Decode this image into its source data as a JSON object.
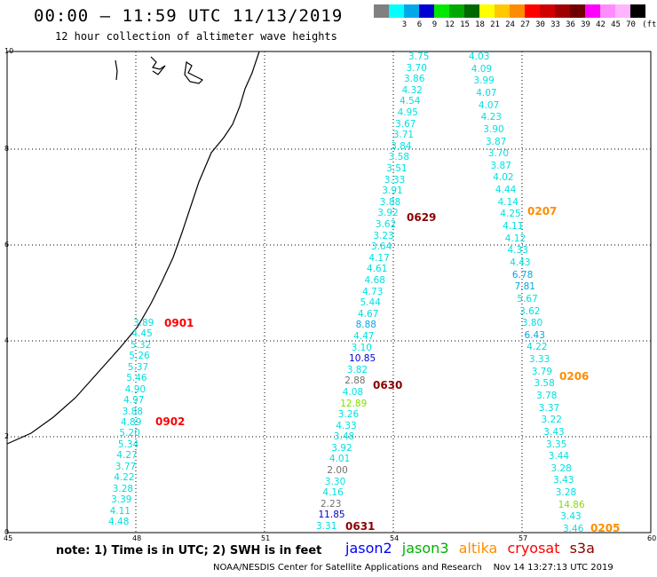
{
  "header": {
    "title": "00:00 – 11:59 UTC 11/13/2019",
    "subtitle": "12 hour collection of altimeter wave heights"
  },
  "colorbar": {
    "unit": "(ft)",
    "swatches": [
      {
        "color": "#808080",
        "label": ""
      },
      {
        "color": "#00ffff",
        "label": "3"
      },
      {
        "color": "#00a8e8",
        "label": "6"
      },
      {
        "color": "#0000d0",
        "label": "9"
      },
      {
        "color": "#00e800",
        "label": "12"
      },
      {
        "color": "#00a800",
        "label": "15"
      },
      {
        "color": "#006800",
        "label": "18"
      },
      {
        "color": "#ffff00",
        "label": "21"
      },
      {
        "color": "#ffc800",
        "label": "24"
      },
      {
        "color": "#ff8c00",
        "label": "27"
      },
      {
        "color": "#ff0000",
        "label": "30"
      },
      {
        "color": "#d00000",
        "label": "33"
      },
      {
        "color": "#a00000",
        "label": "36"
      },
      {
        "color": "#700000",
        "label": "39"
      },
      {
        "color": "#ff00ff",
        "label": "42"
      },
      {
        "color": "#ff8cff",
        "label": "45"
      },
      {
        "color": "#ffb4ff",
        "label": "70"
      },
      {
        "color": "#000000",
        "label": ""
      }
    ]
  },
  "axes": {
    "x_ticks": [
      "45",
      "48",
      "51",
      "54",
      "57",
      "60"
    ],
    "y_ticks": [
      "0",
      "2",
      "4",
      "6",
      "8",
      "10"
    ]
  },
  "tracks": [
    {
      "name": "track-west",
      "values": [
        {
          "v": "3.89",
          "c": "#00e0e0"
        },
        {
          "v": "4.45",
          "c": "#00e0e0"
        },
        {
          "v": "5.32",
          "c": "#00e0e0"
        },
        {
          "v": "5.26",
          "c": "#00e0e0"
        },
        {
          "v": "5.37",
          "c": "#00e0e0"
        },
        {
          "v": "5.46",
          "c": "#00e0e0"
        },
        {
          "v": "4.90",
          "c": "#00e0e0"
        },
        {
          "v": "4.97",
          "c": "#00e0e0"
        },
        {
          "v": "3.88",
          "c": "#00e0e0"
        },
        {
          "v": "4.89",
          "c": "#00e0e0"
        },
        {
          "v": "5.20",
          "c": "#00e0e0"
        },
        {
          "v": "5.34",
          "c": "#00e0e0"
        },
        {
          "v": "4.27",
          "c": "#00e0e0"
        },
        {
          "v": "3.77",
          "c": "#00e0e0"
        },
        {
          "v": "4.22",
          "c": "#00e0e0"
        },
        {
          "v": "3.28",
          "c": "#00e0e0"
        },
        {
          "v": "3.39",
          "c": "#00e0e0"
        },
        {
          "v": "4.11",
          "c": "#00e0e0"
        },
        {
          "v": "4.48",
          "c": "#00e0e0"
        }
      ]
    },
    {
      "name": "track-middle",
      "values": [
        {
          "v": "3.75",
          "c": "#00e0e0"
        },
        {
          "v": "3.70",
          "c": "#00e0e0"
        },
        {
          "v": "3.86",
          "c": "#00e0e0"
        },
        {
          "v": "4.32",
          "c": "#00e0e0"
        },
        {
          "v": "4.54",
          "c": "#00e0e0"
        },
        {
          "v": "4.95",
          "c": "#00e0e0"
        },
        {
          "v": "3.67",
          "c": "#00e0e0"
        },
        {
          "v": "3.71",
          "c": "#00e0e0"
        },
        {
          "v": "3.84",
          "c": "#00e0e0"
        },
        {
          "v": "3.58",
          "c": "#00e0e0"
        },
        {
          "v": "3.51",
          "c": "#00e0e0"
        },
        {
          "v": "3.33",
          "c": "#00e0e0"
        },
        {
          "v": "3.91",
          "c": "#00e0e0"
        },
        {
          "v": "3.88",
          "c": "#00e0e0"
        },
        {
          "v": "3.92",
          "c": "#00e0e0"
        },
        {
          "v": "3.62",
          "c": "#00e0e0"
        },
        {
          "v": "3.23",
          "c": "#00e0e0"
        },
        {
          "v": "3.64",
          "c": "#00e0e0"
        },
        {
          "v": "4.17",
          "c": "#00e0e0"
        },
        {
          "v": "4.61",
          "c": "#00e0e0"
        },
        {
          "v": "4.68",
          "c": "#00e0e0"
        },
        {
          "v": "4.73",
          "c": "#00e0e0"
        },
        {
          "v": "5.44",
          "c": "#00e0e0"
        },
        {
          "v": "4.67",
          "c": "#00e0e0"
        },
        {
          "v": "8.88",
          "c": "#00a8e8"
        },
        {
          "v": "4.47",
          "c": "#00e0e0"
        },
        {
          "v": "3.10",
          "c": "#00e0e0"
        },
        {
          "v": "10.85",
          "c": "#0000d0"
        },
        {
          "v": "3.82",
          "c": "#00e0e0"
        },
        {
          "v": "2.88",
          "c": "#707070"
        },
        {
          "v": "4.08",
          "c": "#00e0e0"
        },
        {
          "v": "12.89",
          "c": "#80e000"
        },
        {
          "v": "3.26",
          "c": "#00e0e0"
        },
        {
          "v": "4.33",
          "c": "#00e0e0"
        },
        {
          "v": "3.48",
          "c": "#00e0e0"
        },
        {
          "v": "3.92",
          "c": "#00e0e0"
        },
        {
          "v": "4.01",
          "c": "#00e0e0"
        },
        {
          "v": "2.00",
          "c": "#707070"
        },
        {
          "v": "3.30",
          "c": "#00e0e0"
        },
        {
          "v": "4.16",
          "c": "#00e0e0"
        },
        {
          "v": "2.23",
          "c": "#707070"
        },
        {
          "v": "11.85",
          "c": "#0000d0"
        },
        {
          "v": "3.31",
          "c": "#00e0e0"
        }
      ]
    },
    {
      "name": "track-east",
      "values": [
        {
          "v": "4.03",
          "c": "#00e0e0"
        },
        {
          "v": "4.09",
          "c": "#00e0e0"
        },
        {
          "v": "3.99",
          "c": "#00e0e0"
        },
        {
          "v": "4.07",
          "c": "#00e0e0"
        },
        {
          "v": "4.07",
          "c": "#00e0e0"
        },
        {
          "v": "4.23",
          "c": "#00e0e0"
        },
        {
          "v": "3.90",
          "c": "#00e0e0"
        },
        {
          "v": "3.87",
          "c": "#00e0e0"
        },
        {
          "v": "3.70",
          "c": "#00e0e0"
        },
        {
          "v": "3.87",
          "c": "#00e0e0"
        },
        {
          "v": "4.02",
          "c": "#00e0e0"
        },
        {
          "v": "4.44",
          "c": "#00e0e0"
        },
        {
          "v": "4.14",
          "c": "#00e0e0"
        },
        {
          "v": "4.25",
          "c": "#00e0e0"
        },
        {
          "v": "4.11",
          "c": "#00e0e0"
        },
        {
          "v": "4.12",
          "c": "#00e0e0"
        },
        {
          "v": "4.33",
          "c": "#00e0e0"
        },
        {
          "v": "4.43",
          "c": "#00e0e0"
        },
        {
          "v": "6.78",
          "c": "#00a8e8"
        },
        {
          "v": "7.81",
          "c": "#00a8e8"
        },
        {
          "v": "5.67",
          "c": "#00e0e0"
        },
        {
          "v": "3.62",
          "c": "#00e0e0"
        },
        {
          "v": "3.80",
          "c": "#00e0e0"
        },
        {
          "v": "6.43",
          "c": "#00a8e8"
        },
        {
          "v": "4.22",
          "c": "#00e0e0"
        },
        {
          "v": "3.33",
          "c": "#00e0e0"
        },
        {
          "v": "3.79",
          "c": "#00e0e0"
        },
        {
          "v": "3.58",
          "c": "#00e0e0"
        },
        {
          "v": "3.78",
          "c": "#00e0e0"
        },
        {
          "v": "3.37",
          "c": "#00e0e0"
        },
        {
          "v": "3.22",
          "c": "#00e0e0"
        },
        {
          "v": "3.43",
          "c": "#00e0e0"
        },
        {
          "v": "3.35",
          "c": "#00e0e0"
        },
        {
          "v": "3.44",
          "c": "#00e0e0"
        },
        {
          "v": "3.28",
          "c": "#00e0e0"
        },
        {
          "v": "3.43",
          "c": "#00e0e0"
        },
        {
          "v": "3.28",
          "c": "#00e0e0"
        },
        {
          "v": "14.86",
          "c": "#80e000"
        },
        {
          "v": "3.43",
          "c": "#00e0e0"
        },
        {
          "v": "3.46",
          "c": "#00e0e0"
        }
      ]
    }
  ],
  "pass_ids": [
    {
      "label": "0901",
      "color": "#ff0000"
    },
    {
      "label": "0902",
      "color": "#ff0000"
    },
    {
      "label": "0629",
      "color": "#8b0000"
    },
    {
      "label": "0630",
      "color": "#8b0000"
    },
    {
      "label": "0631",
      "color": "#8b0000"
    },
    {
      "label": "0207",
      "color": "#ff8c00"
    },
    {
      "label": "0206",
      "color": "#ff8c00"
    },
    {
      "label": "0205",
      "color": "#ff8c00"
    }
  ],
  "footer": {
    "note": "note:  1) Time is in UTC;  2) SWH is in feet",
    "legend": [
      {
        "label": "jason2",
        "color": "#0000ff"
      },
      {
        "label": "jason3",
        "color": "#00b000"
      },
      {
        "label": "altika",
        "color": "#ff8c00"
      },
      {
        "label": "cryosat",
        "color": "#ff0000"
      },
      {
        "label": "s3a",
        "color": "#8b0000"
      }
    ],
    "credit": "NOAA/NESDIS Center for Satellite Applications and Research    Nov 14 13:27:13 UTC 2019"
  }
}
